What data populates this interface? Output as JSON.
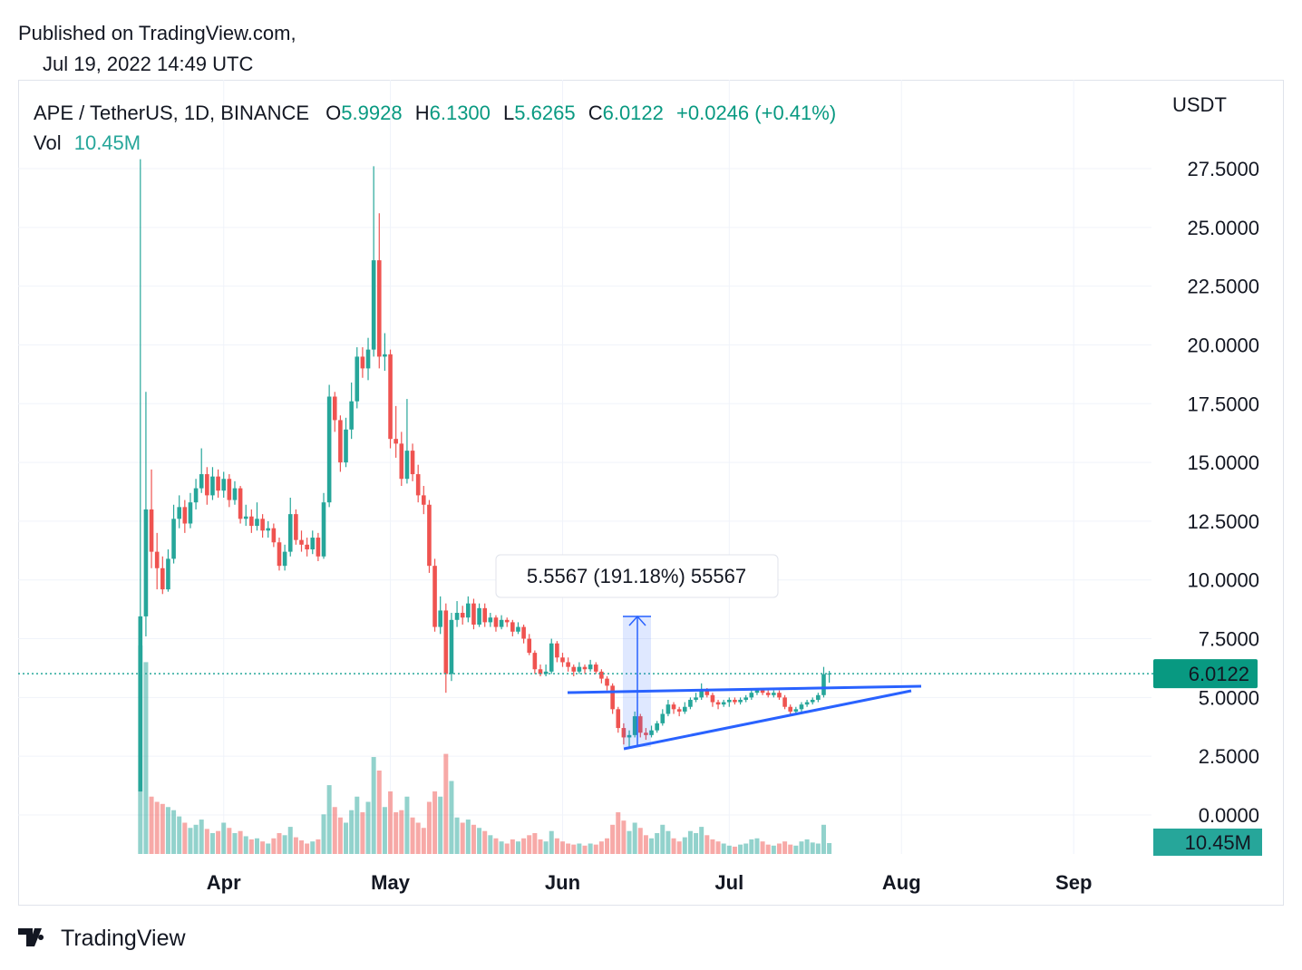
{
  "header": {
    "published": "Published on TradingView.com,",
    "date": "Jul 19, 2022 14:49 UTC"
  },
  "chart_data": {
    "type": "candlestick",
    "title": "APE / TetherUS, 1D, BINANCE",
    "ohlc_legend": [
      {
        "label": "O",
        "value": "5.9928"
      },
      {
        "label": "H",
        "value": "6.1300"
      },
      {
        "label": "L",
        "value": "5.6265"
      },
      {
        "label": "C",
        "value": "6.0122"
      }
    ],
    "change": "+0.0246 (+0.41%)",
    "volume_title": "Vol",
    "volume_value": "10.45M",
    "currency": "USDT",
    "last_price": {
      "value": 6.0122,
      "label": "6.0122"
    },
    "last_volume_label": "10.45M",
    "measure_label": "5.5567 (191.18%) 55567",
    "colors": {
      "up": "#26a69a",
      "down": "#ef5350",
      "line": "#2962ff"
    },
    "grid": true,
    "xlim": [
      -22,
      182
    ],
    "xticks": [
      {
        "value": 15,
        "label": "Apr"
      },
      {
        "value": 45,
        "label": "May"
      },
      {
        "value": 76,
        "label": "Jun"
      },
      {
        "value": 106,
        "label": "Jul"
      },
      {
        "value": 137,
        "label": "Aug"
      },
      {
        "value": 168,
        "label": "Sep"
      }
    ],
    "ylim": [
      -2.16,
      31.28
    ],
    "yticks": [
      {
        "value": 0,
        "label": "0.0000"
      },
      {
        "value": 2.5,
        "label": "2.5000"
      },
      {
        "value": 5,
        "label": "5.0000"
      },
      {
        "value": 7.5,
        "label": "7.5000"
      },
      {
        "value": 10,
        "label": "10.0000"
      },
      {
        "value": 12.5,
        "label": "12.5000"
      },
      {
        "value": 15,
        "label": "15.0000"
      },
      {
        "value": 17.5,
        "label": "17.5000"
      },
      {
        "value": 20,
        "label": "20.0000"
      },
      {
        "value": 22.5,
        "label": "22.5000"
      },
      {
        "value": 25,
        "label": "25.0000"
      },
      {
        "value": 27.5,
        "label": "27.5000"
      }
    ],
    "ohlc": [
      [
        1.0,
        27.9,
        1.0,
        8.45
      ],
      [
        8.45,
        18.0,
        7.6,
        13.0
      ],
      [
        13.0,
        14.7,
        10.5,
        11.2
      ],
      [
        11.2,
        12.0,
        9.6,
        10.5
      ],
      [
        10.5,
        11.0,
        9.4,
        9.6
      ],
      [
        9.6,
        11.3,
        9.5,
        10.9
      ],
      [
        10.9,
        13.2,
        10.7,
        12.6
      ],
      [
        12.6,
        13.6,
        12.2,
        13.1
      ],
      [
        13.1,
        13.4,
        12.0,
        12.4
      ],
      [
        12.4,
        13.7,
        12.2,
        13.3
      ],
      [
        13.3,
        14.3,
        13.0,
        13.9
      ],
      [
        13.9,
        15.6,
        13.7,
        14.5
      ],
      [
        14.5,
        14.8,
        13.2,
        13.6
      ],
      [
        13.6,
        14.8,
        13.4,
        14.4
      ],
      [
        14.4,
        14.7,
        13.5,
        13.8
      ],
      [
        13.8,
        14.6,
        13.5,
        14.3
      ],
      [
        14.3,
        14.5,
        13.1,
        13.4
      ],
      [
        13.4,
        14.2,
        13.2,
        13.9
      ],
      [
        13.9,
        14.0,
        12.4,
        12.6
      ],
      [
        12.6,
        13.2,
        12.3,
        12.7
      ],
      [
        12.7,
        13.0,
        12.0,
        12.3
      ],
      [
        12.3,
        13.3,
        12.1,
        12.6
      ],
      [
        12.6,
        12.8,
        11.8,
        12.1
      ],
      [
        12.1,
        12.5,
        11.8,
        12.2
      ],
      [
        12.2,
        12.4,
        11.4,
        11.6
      ],
      [
        11.6,
        11.8,
        10.4,
        10.6
      ],
      [
        10.6,
        11.5,
        10.4,
        11.2
      ],
      [
        11.2,
        13.5,
        11.0,
        12.8
      ],
      [
        12.8,
        13.0,
        11.5,
        11.7
      ],
      [
        11.7,
        12.1,
        11.2,
        11.5
      ],
      [
        11.5,
        11.8,
        11.0,
        11.3
      ],
      [
        11.3,
        12.1,
        11.1,
        11.8
      ],
      [
        11.8,
        12.0,
        10.8,
        11.0
      ],
      [
        11.0,
        13.7,
        10.9,
        13.3
      ],
      [
        13.3,
        18.3,
        13.1,
        17.8
      ],
      [
        17.8,
        18.0,
        16.3,
        16.8
      ],
      [
        16.8,
        17.0,
        14.6,
        15.0
      ],
      [
        15.0,
        16.9,
        14.8,
        16.4
      ],
      [
        16.4,
        18.4,
        16.0,
        17.6
      ],
      [
        17.6,
        19.9,
        17.3,
        19.5
      ],
      [
        19.5,
        19.9,
        18.6,
        19.0
      ],
      [
        19.0,
        20.3,
        18.5,
        19.8
      ],
      [
        19.8,
        27.6,
        19.5,
        23.6
      ],
      [
        23.6,
        25.6,
        19.0,
        19.5
      ],
      [
        19.5,
        20.5,
        18.9,
        19.6
      ],
      [
        19.6,
        19.8,
        15.6,
        16.0
      ],
      [
        16.0,
        17.4,
        15.2,
        15.8
      ],
      [
        15.8,
        16.3,
        14.0,
        14.3
      ],
      [
        14.3,
        17.7,
        14.1,
        15.5
      ],
      [
        15.5,
        15.8,
        14.2,
        14.5
      ],
      [
        14.5,
        14.9,
        13.3,
        13.6
      ],
      [
        13.6,
        14.0,
        12.8,
        13.2
      ],
      [
        13.2,
        13.4,
        10.3,
        10.6
      ],
      [
        10.6,
        10.9,
        7.8,
        8.0
      ],
      [
        8.0,
        9.3,
        7.7,
        8.7
      ],
      [
        8.7,
        9.0,
        5.2,
        6.0
      ],
      [
        6.0,
        8.6,
        5.7,
        8.3
      ],
      [
        8.3,
        9.1,
        8.0,
        8.6
      ],
      [
        8.6,
        8.9,
        8.1,
        8.4
      ],
      [
        8.4,
        9.3,
        8.2,
        9.0
      ],
      [
        9.0,
        9.2,
        7.9,
        8.1
      ],
      [
        8.1,
        9.0,
        8.0,
        8.8
      ],
      [
        8.8,
        9.0,
        8.0,
        8.2
      ],
      [
        8.2,
        8.6,
        8.0,
        8.4
      ],
      [
        8.4,
        8.5,
        7.8,
        8.0
      ],
      [
        8.0,
        8.5,
        7.9,
        8.3
      ],
      [
        8.3,
        8.4,
        8.0,
        8.2
      ],
      [
        8.2,
        8.3,
        7.6,
        7.8
      ],
      [
        7.8,
        8.2,
        7.7,
        8.0
      ],
      [
        8.0,
        8.1,
        7.3,
        7.5
      ],
      [
        7.5,
        7.7,
        6.8,
        6.9
      ],
      [
        6.9,
        7.0,
        6.0,
        6.2
      ],
      [
        6.2,
        6.4,
        5.9,
        6.0
      ],
      [
        6.0,
        6.4,
        5.9,
        6.1
      ],
      [
        6.1,
        7.5,
        6.0,
        7.3
      ],
      [
        7.3,
        7.4,
        6.5,
        6.7
      ],
      [
        6.7,
        6.9,
        6.3,
        6.5
      ],
      [
        6.5,
        6.7,
        6.1,
        6.3
      ],
      [
        6.3,
        6.4,
        5.9,
        6.1
      ],
      [
        6.1,
        6.5,
        6.0,
        6.3
      ],
      [
        6.3,
        6.4,
        6.0,
        6.2
      ],
      [
        6.2,
        6.6,
        6.1,
        6.4
      ],
      [
        6.4,
        6.5,
        6.0,
        6.1
      ],
      [
        6.1,
        6.2,
        5.6,
        5.8
      ],
      [
        5.8,
        5.9,
        5.3,
        5.5
      ],
      [
        5.5,
        5.6,
        4.3,
        4.5
      ],
      [
        4.5,
        4.6,
        3.5,
        3.7
      ],
      [
        3.7,
        3.9,
        3.0,
        3.3
      ],
      [
        3.3,
        3.6,
        2.9,
        3.4
      ],
      [
        3.4,
        4.4,
        3.3,
        4.2
      ],
      [
        4.2,
        4.3,
        3.3,
        3.5
      ],
      [
        3.5,
        3.7,
        3.2,
        3.4
      ],
      [
        3.4,
        3.8,
        3.3,
        3.6
      ],
      [
        3.6,
        4.0,
        3.5,
        3.9
      ],
      [
        3.9,
        4.5,
        3.8,
        4.3
      ],
      [
        4.3,
        4.9,
        4.2,
        4.7
      ],
      [
        4.7,
        4.8,
        4.3,
        4.5
      ],
      [
        4.5,
        4.6,
        4.2,
        4.4
      ],
      [
        4.4,
        4.8,
        4.3,
        4.6
      ],
      [
        4.6,
        5.0,
        4.5,
        4.9
      ],
      [
        4.9,
        5.2,
        4.8,
        5.0
      ],
      [
        5.0,
        5.6,
        4.9,
        5.3
      ],
      [
        5.3,
        5.4,
        5.0,
        5.1
      ],
      [
        5.1,
        5.2,
        4.6,
        4.8
      ],
      [
        4.8,
        4.9,
        4.5,
        4.7
      ],
      [
        4.7,
        4.9,
        4.6,
        4.8
      ],
      [
        4.8,
        5.0,
        4.6,
        4.9
      ],
      [
        4.9,
        5.0,
        4.7,
        4.8
      ],
      [
        4.8,
        5.0,
        4.7,
        4.9
      ],
      [
        4.9,
        5.1,
        4.8,
        5.0
      ],
      [
        5.0,
        5.3,
        4.9,
        5.2
      ],
      [
        5.2,
        5.4,
        5.1,
        5.3
      ],
      [
        5.3,
        5.4,
        5.1,
        5.2
      ],
      [
        5.2,
        5.3,
        5.0,
        5.1
      ],
      [
        5.1,
        5.3,
        5.0,
        5.2
      ],
      [
        5.2,
        5.3,
        4.9,
        5.0
      ],
      [
        5.0,
        5.1,
        4.5,
        4.6
      ],
      [
        4.6,
        4.7,
        4.3,
        4.4
      ],
      [
        4.4,
        4.6,
        4.3,
        4.5
      ],
      [
        4.5,
        4.8,
        4.4,
        4.7
      ],
      [
        4.7,
        4.9,
        4.6,
        4.8
      ],
      [
        4.8,
        5.0,
        4.7,
        4.9
      ],
      [
        4.9,
        5.2,
        4.8,
        5.1
      ],
      [
        5.1,
        6.3,
        5.0,
        5.9928
      ],
      [
        5.9928,
        6.13,
        5.6265,
        6.0122
      ]
    ],
    "volume": [
      200,
      184,
      55,
      50,
      48,
      45,
      42,
      36,
      30,
      25,
      28,
      33,
      24,
      20,
      22,
      30,
      25,
      20,
      22,
      17,
      14,
      15,
      12,
      10,
      15,
      20,
      18,
      26,
      16,
      13,
      10,
      12,
      14,
      38,
      66,
      45,
      35,
      30,
      42,
      55,
      40,
      50,
      93,
      80,
      45,
      60,
      40,
      42,
      55,
      35,
      30,
      25,
      50,
      60,
      55,
      96,
      70,
      35,
      30,
      33,
      28,
      25,
      22,
      18,
      15,
      12,
      10,
      14,
      12,
      15,
      18,
      20,
      14,
      12,
      22,
      15,
      12,
      10,
      9,
      10,
      8,
      10,
      9,
      12,
      15,
      28,
      40,
      32,
      22,
      30,
      25,
      18,
      15,
      20,
      28,
      22,
      15,
      12,
      16,
      22,
      20,
      26,
      18,
      14,
      12,
      10,
      8,
      7,
      9,
      10,
      14,
      15,
      12,
      9,
      8,
      10,
      12,
      9,
      8,
      12,
      14,
      11,
      10,
      28,
      10.45
    ]
  },
  "footer": {
    "brand": "TradingView"
  }
}
